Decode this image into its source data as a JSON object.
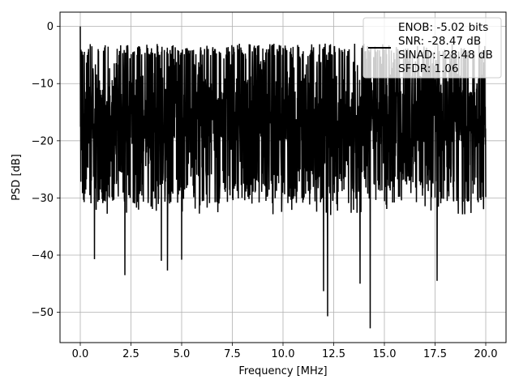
{
  "chart_data": {
    "type": "line",
    "title": "",
    "xlabel": "Frequency [MHz]",
    "ylabel": "PSD [dB]",
    "xlim": [
      -1.0,
      21.0
    ],
    "ylim": [
      -55.3,
      2.5
    ],
    "xticks": [
      0.0,
      2.5,
      5.0,
      7.5,
      10.0,
      12.5,
      15.0,
      17.5,
      20.0
    ],
    "xtick_labels": [
      "0.0",
      "2.5",
      "5.0",
      "7.5",
      "10.0",
      "12.5",
      "15.0",
      "17.5",
      "20.0"
    ],
    "yticks": [
      0,
      -10,
      -20,
      -30,
      -40,
      -50
    ],
    "ytick_labels": [
      "0",
      "−10",
      "−20",
      "−30",
      "−40",
      "−50"
    ],
    "grid": true,
    "legend_position": "top-right",
    "series": [
      {
        "name": "",
        "color": "#000000",
        "description_of_shape": "dense noise floor",
        "x_range": [
          0.0,
          20.0
        ],
        "peak": {
          "x": 0.0,
          "y": 0.0
        },
        "upper_envelope_approx": -5,
        "band_center_approx": -17,
        "lower_envelope_approx": -27,
        "notable_dips": [
          {
            "x": 12.0,
            "y": -46.3
          },
          {
            "x": 12.2,
            "y": -50.7
          },
          {
            "x": 14.3,
            "y": -52.8
          },
          {
            "x": 13.8,
            "y": -45.0
          },
          {
            "x": 17.6,
            "y": -44.5
          },
          {
            "x": 2.2,
            "y": -43.5
          },
          {
            "x": 4.3,
            "y": -42.7
          },
          {
            "x": 4.0,
            "y": -41.0
          },
          {
            "x": 0.7,
            "y": -40.7
          },
          {
            "x": 5.0,
            "y": -40.8
          }
        ]
      }
    ],
    "legend_text": [
      "ENOB: -5.02 bits",
      "SNR: -28.47 dB",
      "SINAD: -28.48 dB",
      "SFDR: 1.06"
    ]
  }
}
